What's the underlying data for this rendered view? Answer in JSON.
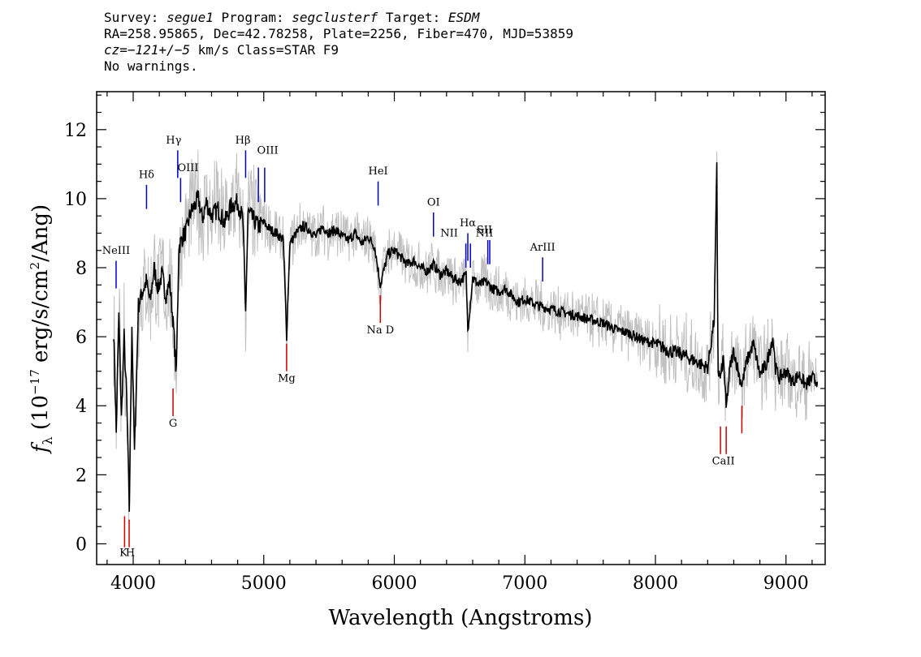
{
  "header": {
    "survey_label": "Survey:",
    "survey": "segue1",
    "program_label": "Program:",
    "program": "segclusterf",
    "target_label": "Target:",
    "target": "ESDM",
    "line2": "RA=258.95865, Dec=42.78258, Plate=2256, Fiber=470, MJD=53859",
    "cz": "cz=−121+/−5",
    "cz_rest": " km/s Class=STAR F9",
    "line4": "No warnings."
  },
  "chart_data": {
    "type": "line",
    "xlabel": "Wavelength (Angstroms)",
    "ylabel_prefix": "f",
    "ylabel_sub": "λ",
    "ylabel_main": " (10",
    "ylabel_exp": "−17",
    "ylabel_rest": " erg/s/cm",
    "ylabel_exp2": "2",
    "ylabel_end": "/Ang)",
    "xlim": [
      3720,
      9300
    ],
    "ylim": [
      -0.6,
      13.1
    ],
    "x_ticks": [
      4000,
      5000,
      6000,
      7000,
      8000,
      9000
    ],
    "y_ticks": [
      0,
      2,
      4,
      6,
      8,
      10,
      12
    ],
    "series": [
      {
        "color": "#000000",
        "x": [
          3850,
          3870,
          3890,
          3910,
          3930,
          3950,
          3970,
          3990,
          4010,
          4040,
          4070,
          4100,
          4130,
          4160,
          4190,
          4220,
          4250,
          4280,
          4310,
          4330,
          4350,
          4380,
          4410,
          4440,
          4470,
          4500,
          4530,
          4560,
          4600,
          4650,
          4700,
          4750,
          4800,
          4840,
          4861,
          4880,
          4920,
          4960,
          5000,
          5050,
          5100,
          5150,
          5175,
          5200,
          5250,
          5300,
          5350,
          5400,
          5450,
          5500,
          5550,
          5600,
          5650,
          5700,
          5750,
          5800,
          5850,
          5893,
          5950,
          6000,
          6050,
          6100,
          6150,
          6200,
          6250,
          6300,
          6350,
          6400,
          6450,
          6500,
          6550,
          6563,
          6600,
          6650,
          6700,
          6750,
          6800,
          6850,
          6900,
          6950,
          7000,
          7100,
          7200,
          7300,
          7400,
          7500,
          7600,
          7700,
          7800,
          7900,
          8000,
          8100,
          8200,
          8300,
          8400,
          8450,
          8470,
          8480,
          8500,
          8520,
          8542,
          8570,
          8600,
          8640,
          8662,
          8700,
          8750,
          8800,
          8850,
          8900,
          8920,
          8950,
          9000,
          9050,
          9100,
          9150,
          9200,
          9240
        ],
        "y": [
          6.2,
          3.2,
          6.6,
          3.6,
          6.0,
          4.2,
          1.0,
          6.4,
          2.6,
          6.9,
          7.3,
          7.6,
          7.0,
          8.0,
          7.4,
          7.8,
          7.2,
          7.6,
          6.2,
          4.9,
          8.6,
          8.9,
          9.1,
          9.6,
          9.8,
          10.0,
          9.4,
          9.9,
          9.5,
          9.7,
          9.3,
          9.8,
          9.9,
          9.4,
          6.7,
          9.6,
          9.4,
          9.2,
          9.3,
          9.1,
          9.0,
          8.8,
          6.0,
          8.7,
          9.0,
          9.2,
          9.1,
          8.9,
          9.2,
          9.0,
          9.1,
          8.9,
          8.8,
          9.0,
          8.7,
          8.9,
          8.6,
          7.5,
          8.4,
          8.5,
          8.3,
          8.1,
          8.2,
          8.0,
          7.9,
          8.1,
          7.8,
          7.9,
          7.7,
          7.6,
          7.8,
          6.2,
          7.7,
          7.5,
          7.6,
          7.4,
          7.3,
          7.4,
          7.2,
          7.0,
          7.1,
          6.9,
          6.8,
          6.7,
          6.6,
          6.5,
          6.4,
          6.2,
          6.1,
          5.9,
          5.8,
          5.6,
          5.5,
          5.3,
          5.1,
          6.5,
          10.9,
          5.0,
          4.8,
          5.4,
          3.9,
          5.1,
          5.6,
          4.9,
          4.6,
          5.3,
          5.8,
          4.9,
          5.2,
          6.0,
          5.1,
          4.8,
          5.0,
          4.7,
          4.9,
          4.6,
          4.8,
          4.7
        ]
      }
    ],
    "noise_color": "#c0c0c0",
    "lines_blue": [
      {
        "label": "NeIII",
        "x": 3869,
        "y1": 7.4,
        "y2": 8.2,
        "lx": 3869,
        "ly": 8.4
      },
      {
        "label": "Hδ",
        "x": 4102,
        "y1": 9.7,
        "y2": 10.4,
        "lx": 4102,
        "ly": 10.6
      },
      {
        "label": "Hγ",
        "x": 4341,
        "y1": 10.6,
        "y2": 11.4,
        "lx": 4310,
        "ly": 11.6
      },
      {
        "label": "OIII",
        "x": 4363,
        "y1": 9.9,
        "y2": 10.6,
        "lx": 4420,
        "ly": 10.8
      },
      {
        "label": "Hβ",
        "x": 4861,
        "y1": 10.6,
        "y2": 11.4,
        "lx": 4840,
        "ly": 11.6
      },
      {
        "label": "OIII",
        "x": 4959,
        "y1": 9.9,
        "y2": 10.9,
        "lx": 5030,
        "ly": 11.3
      },
      {
        "label": "OIII",
        "x": 5007,
        "y1": 9.9,
        "y2": 10.9,
        "lx": null,
        "ly": null
      },
      {
        "label": "HeI",
        "x": 5876,
        "y1": 9.8,
        "y2": 10.5,
        "lx": 5876,
        "ly": 10.7
      },
      {
        "label": "OI",
        "x": 6300,
        "y1": 8.9,
        "y2": 9.6,
        "lx": 6300,
        "ly": 9.8
      },
      {
        "label": "NII",
        "x": 6548,
        "y1": 8.0,
        "y2": 8.7,
        "lx": 6420,
        "ly": 8.9
      },
      {
        "label": "Hα",
        "x": 6563,
        "y1": 8.2,
        "y2": 9.0,
        "lx": 6563,
        "ly": 9.2
      },
      {
        "label": "NII",
        "x": 6583,
        "y1": 8.0,
        "y2": 8.7,
        "lx": 6690,
        "ly": 8.9
      },
      {
        "label": "SII",
        "x": 6716,
        "y1": 8.1,
        "y2": 8.8,
        "lx": 6690,
        "ly": 9.0
      },
      {
        "label": "SII",
        "x": 6731,
        "y1": 8.1,
        "y2": 8.8,
        "lx": null,
        "ly": null
      },
      {
        "label": "ArIII",
        "x": 7136,
        "y1": 7.6,
        "y2": 8.3,
        "lx": 7136,
        "ly": 8.5
      }
    ],
    "lines_red": [
      {
        "label": "K",
        "x": 3934,
        "y1": -0.1,
        "y2": 0.8,
        "lx": 3925,
        "ly": -0.35
      },
      {
        "label": "H",
        "x": 3969,
        "y1": -0.1,
        "y2": 0.7,
        "lx": 3978,
        "ly": -0.35
      },
      {
        "label": "G",
        "x": 4305,
        "y1": 3.7,
        "y2": 4.5,
        "lx": 4305,
        "ly": 3.4
      },
      {
        "label": "Mg",
        "x": 5175,
        "y1": 5.0,
        "y2": 5.8,
        "lx": 5175,
        "ly": 4.7
      },
      {
        "label": "Na D",
        "x": 5893,
        "y1": 6.4,
        "y2": 7.2,
        "lx": 5893,
        "ly": 6.1
      },
      {
        "label": "CaII",
        "x": 8498,
        "y1": 2.6,
        "y2": 3.4,
        "lx": 8520,
        "ly": 2.3
      },
      {
        "label": "",
        "x": 8542,
        "y1": 2.6,
        "y2": 3.4,
        "lx": null,
        "ly": null
      },
      {
        "label": "",
        "x": 8662,
        "y1": 3.2,
        "y2": 4.0,
        "lx": null,
        "ly": null
      }
    ]
  }
}
